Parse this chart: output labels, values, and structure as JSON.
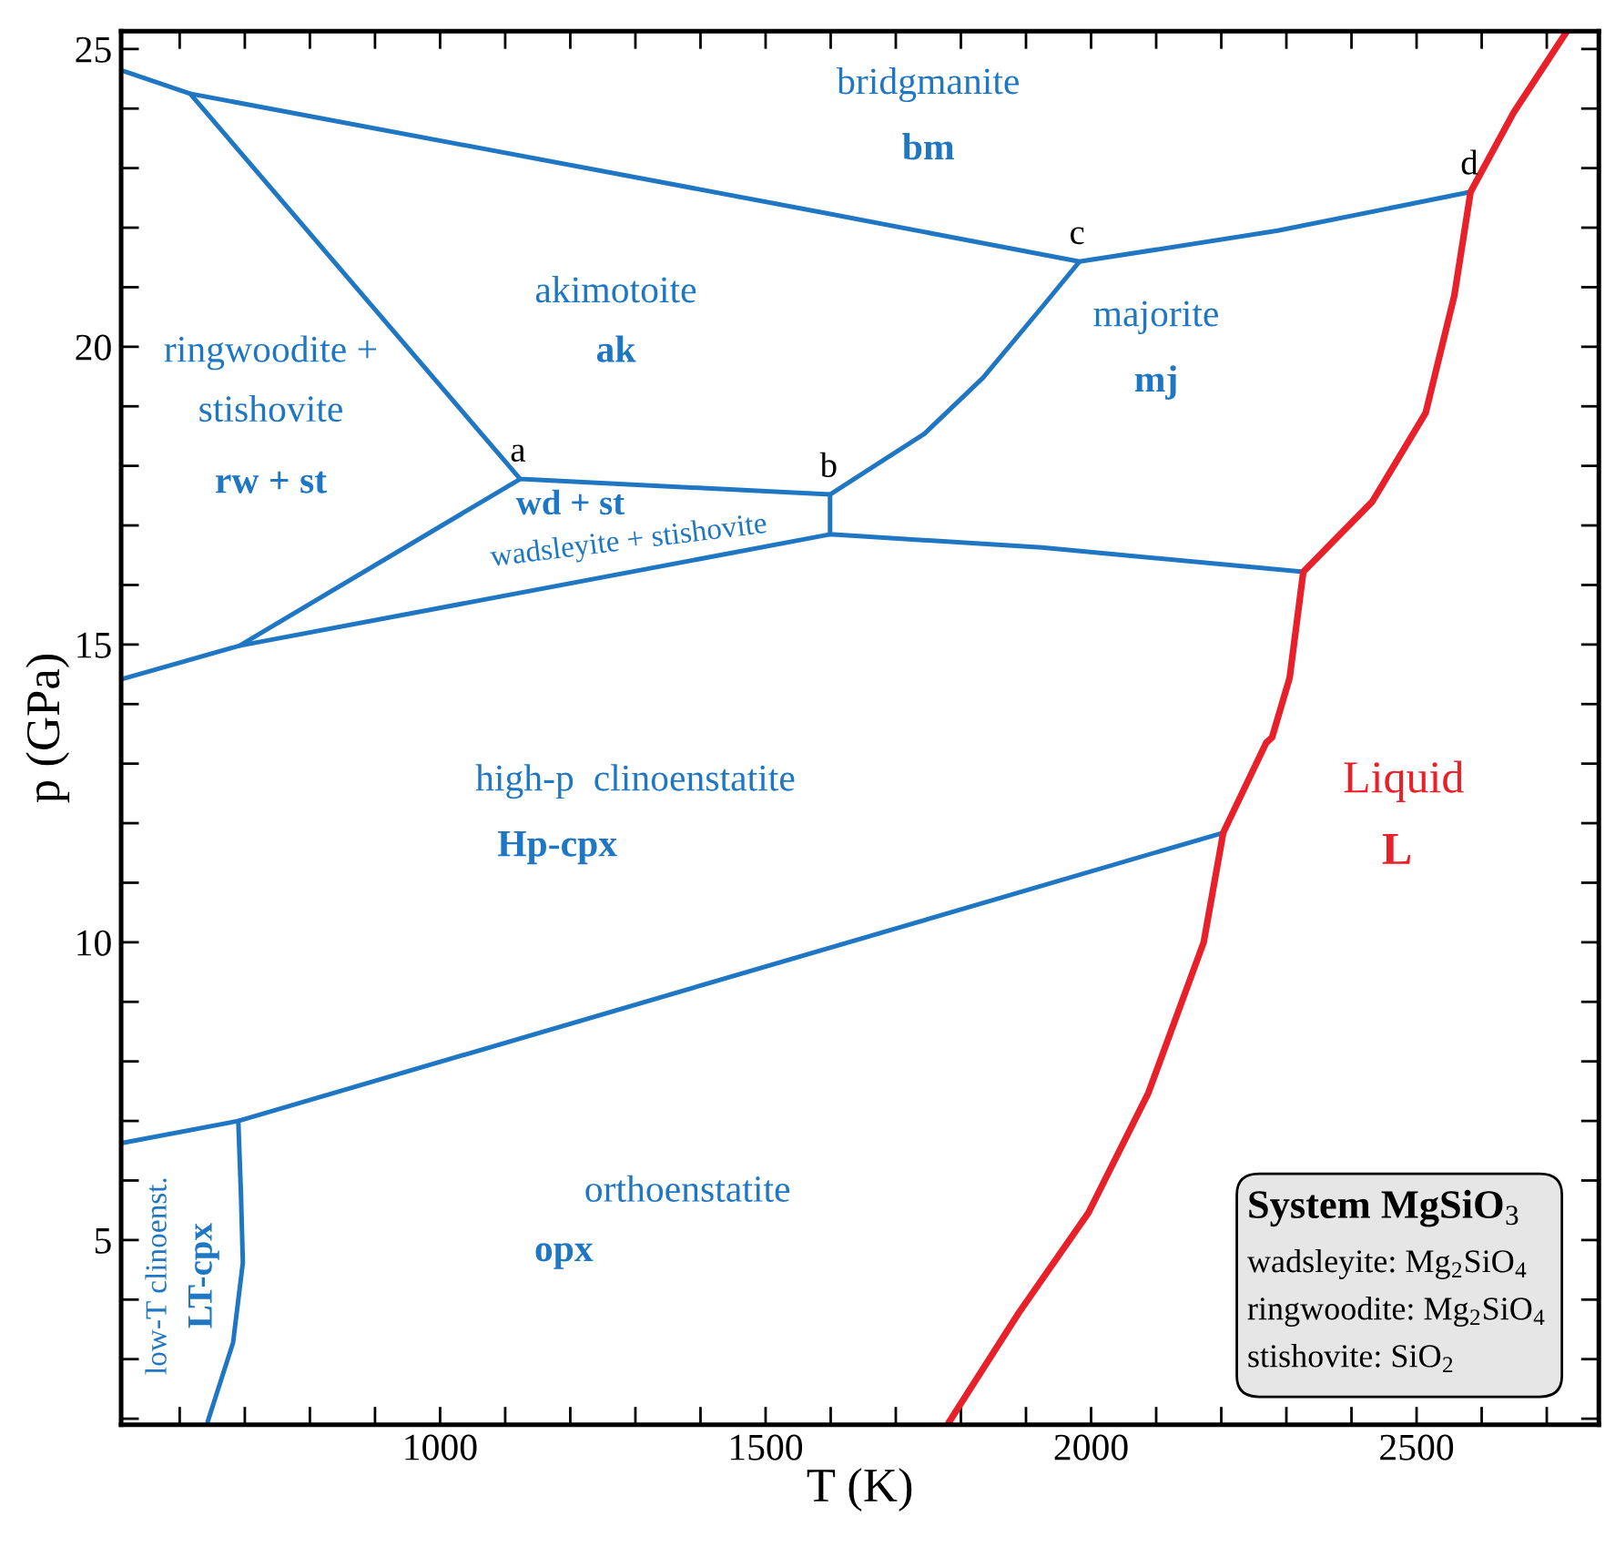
{
  "chart_data": {
    "type": "line",
    "xlabel": "T (K)",
    "ylabel": "p (GPa)",
    "xlim": [
      510,
      2780
    ],
    "ylim": [
      1.9,
      25.3
    ],
    "xticks": [
      {
        "value": 600,
        "label": null
      },
      {
        "value": 700,
        "label": null
      },
      {
        "value": 800,
        "label": null
      },
      {
        "value": 900,
        "label": null
      },
      1000,
      {
        "value": 1100,
        "label": null
      },
      {
        "value": 1200,
        "label": null
      },
      {
        "value": 1300,
        "label": null
      },
      {
        "value": 1400,
        "label": null
      },
      1500,
      {
        "value": 1600,
        "label": null
      },
      {
        "value": 1700,
        "label": null
      },
      {
        "value": 1800,
        "label": null
      },
      {
        "value": 1900,
        "label": null
      },
      2000,
      {
        "value": 2100,
        "label": null
      },
      {
        "value": 2200,
        "label": null
      },
      {
        "value": 2300,
        "label": null
      },
      {
        "value": 2400,
        "label": null
      },
      2500,
      {
        "value": 2600,
        "label": null
      },
      {
        "value": 2700,
        "label": null
      }
    ],
    "yticks": [
      {
        "value": 2,
        "label": null
      },
      {
        "value": 3,
        "label": null
      },
      {
        "value": 4,
        "label": null
      },
      5,
      {
        "value": 6,
        "label": null
      },
      {
        "value": 7,
        "label": null
      },
      {
        "value": 8,
        "label": null
      },
      {
        "value": 9,
        "label": null
      },
      10,
      {
        "value": 11,
        "label": null
      },
      {
        "value": 12,
        "label": null
      },
      {
        "value": 13,
        "label": null
      },
      {
        "value": 14,
        "label": null
      },
      15,
      {
        "value": 16,
        "label": null
      },
      {
        "value": 17,
        "label": null
      },
      {
        "value": 18,
        "label": null
      },
      {
        "value": 19,
        "label": null
      },
      20,
      {
        "value": 21,
        "label": null
      },
      {
        "value": 22,
        "label": null
      },
      {
        "value": 23,
        "label": null
      },
      {
        "value": 24,
        "label": null
      },
      25
    ],
    "grid": false,
    "marker": "none",
    "line_style": "solid",
    "series": [
      {
        "color": "#1f77c4",
        "x": [
          511,
          616,
          1590,
          1982,
          2287,
          2583
        ],
        "values": [
          24.64,
          24.25,
          22.25,
          21.43,
          21.95,
          22.6
        ]
      },
      {
        "color": "#1f77c4",
        "x": [
          616,
          1123,
          1599,
          1599
        ],
        "values": [
          24.25,
          17.78,
          17.52,
          16.85
        ]
      },
      {
        "color": "#1f77c4",
        "x": [
          1599,
          1744,
          1834,
          1925,
          1982
        ],
        "values": [
          17.52,
          18.54,
          19.48,
          20.67,
          21.43
        ]
      },
      {
        "color": "#1f77c4",
        "x": [
          511,
          692,
          1599,
          1924,
          2326
        ],
        "values": [
          14.42,
          14.98,
          16.85,
          16.63,
          16.22
        ]
      },
      {
        "color": "#1f77c4",
        "x": [
          692,
          1123
        ],
        "values": [
          14.98,
          17.78
        ]
      },
      {
        "color": "#1f77c4",
        "x": [
          512,
          690,
          2203
        ],
        "values": [
          6.63,
          7.0,
          11.84
        ]
      },
      {
        "color": "#1f77c4",
        "x": [
          690,
          694,
          697,
          682,
          643
        ],
        "values": [
          7.0,
          5.8,
          4.62,
          3.28,
          1.95
        ]
      },
      {
        "color": "#e8202a",
        "x": [
          1781,
          1889,
          1996,
          2088,
          2173,
          2203,
          2269,
          2278,
          2305,
          2326,
          2432,
          2514,
          2558,
          2583,
          2649,
          2731
        ],
        "values": [
          1.93,
          3.78,
          5.46,
          7.47,
          10.0,
          11.84,
          13.35,
          13.44,
          14.44,
          16.22,
          17.4,
          18.89,
          20.86,
          22.6,
          23.93,
          25.3
        ]
      }
    ],
    "annotations": [
      "bridgmanite",
      "bm",
      "akimotoite",
      "ak",
      "majorite",
      "mj",
      "ringwoodite +",
      "stishovite",
      "rw + st",
      "wd + st",
      "wadsleyite + stishovite",
      "high-p  clinoenstatite",
      "Hp-cpx",
      "orthoenstatite",
      "opx",
      "Liquid",
      "L",
      "low-T clinoenst.",
      "LT-cpx",
      {
        "text": "a",
        "x": 1123,
        "y": 17.78
      },
      {
        "text": "b",
        "x": 1599,
        "y": 17.52
      },
      {
        "text": "c",
        "x": 1982,
        "y": 21.43
      },
      {
        "text": "d",
        "x": 2583,
        "y": 22.6
      },
      "System MgSiO$_{3}$",
      "wadsleyite: Mg$_{2}$SiO$_{4}$",
      "ringwoodite: Mg$_{2}$SiO$_{4}$",
      "stishovite: SiO$_{2}$"
    ]
  }
}
